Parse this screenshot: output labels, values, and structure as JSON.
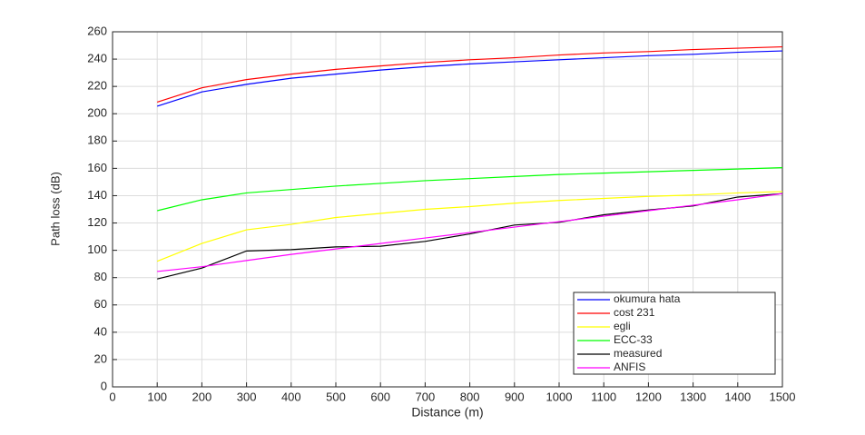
{
  "chart_data": {
    "type": "line",
    "xlabel": "Distance (m)",
    "ylabel": "Path loss (dB)",
    "x": [
      100,
      200,
      300,
      400,
      500,
      600,
      700,
      800,
      900,
      1000,
      1100,
      1200,
      1300,
      1400,
      1500
    ],
    "series": [
      {
        "name": "okumura hata",
        "color": "#0000ff",
        "values": [
          205.5,
          216,
          221.5,
          226,
          229,
          232,
          234.5,
          236.5,
          238,
          239.5,
          241,
          242.5,
          243.5,
          245,
          246
        ]
      },
      {
        "name": "cost 231",
        "color": "#ff0000",
        "values": [
          208.5,
          219,
          225,
          229,
          232.5,
          235,
          237.5,
          239.5,
          241,
          243,
          244.5,
          245.5,
          247,
          248,
          249
        ]
      },
      {
        "name": "egli",
        "color": "#ffff00",
        "values": [
          92,
          105,
          115,
          119,
          124,
          127,
          130,
          132,
          134.5,
          136.5,
          138,
          139.5,
          140.5,
          142,
          143
        ]
      },
      {
        "name": "ECC-33",
        "color": "#00ff00",
        "values": [
          129,
          137,
          142,
          144.5,
          147,
          149,
          151,
          152.5,
          154,
          155.5,
          156.5,
          157.5,
          158.5,
          159.5,
          160.5
        ]
      },
      {
        "name": "measured",
        "color": "#000000",
        "values": [
          79,
          87,
          99.5,
          100.5,
          102.5,
          103,
          106.5,
          112,
          118.5,
          120.5,
          126,
          129.5,
          132.5,
          139,
          141.5
        ]
      },
      {
        "name": "ANFIS",
        "color": "#ff00ff",
        "values": [
          84.5,
          88,
          92.5,
          97,
          101,
          105,
          109,
          113,
          117,
          121,
          125,
          129,
          133,
          137,
          141.5
        ]
      }
    ],
    "xlim": [
      0,
      1500
    ],
    "xticks": [
      0,
      100,
      200,
      300,
      400,
      500,
      600,
      700,
      800,
      900,
      1000,
      1100,
      1200,
      1300,
      1400,
      1500
    ],
    "ylim": [
      0,
      260
    ],
    "yticks": [
      0,
      20,
      40,
      60,
      80,
      100,
      120,
      140,
      160,
      180,
      200,
      220,
      240,
      260
    ],
    "grid": true,
    "legend": "lower right"
  }
}
